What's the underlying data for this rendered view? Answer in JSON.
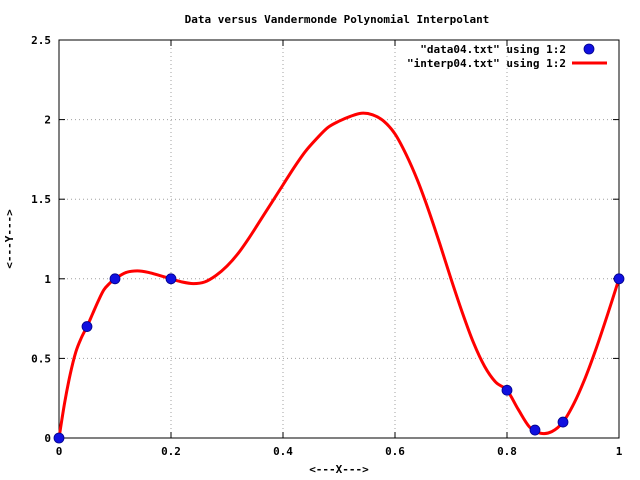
{
  "chart_data": {
    "type": "line",
    "title": "Data versus Vandermonde Polynomial Interpolant",
    "xlabel": "<---X--->",
    "ylabel": "<---Y--->",
    "xlim": [
      0,
      1
    ],
    "ylim": [
      0,
      2.5
    ],
    "x_ticks": [
      "0",
      "0.2",
      "0.4",
      "0.6",
      "0.8",
      "1"
    ],
    "y_ticks": [
      "0",
      "0.5",
      "1",
      "1.5",
      "2",
      "2.5"
    ],
    "grid": true,
    "legend_position": "top-right",
    "series": [
      {
        "name": "\"data04.txt\" using 1:2",
        "style": "points",
        "color": "#1010e0",
        "x": [
          0.0,
          0.05,
          0.1,
          0.2,
          0.8,
          0.85,
          0.9,
          1.0
        ],
        "y": [
          0.0,
          0.7,
          1.0,
          1.0,
          0.3,
          0.05,
          0.1,
          1.0
        ]
      },
      {
        "name": "\"interp04.txt\" using 1:2",
        "style": "line",
        "color": "#ff0000",
        "x": [
          0.0,
          0.01,
          0.02,
          0.03,
          0.04,
          0.05,
          0.06,
          0.07,
          0.08,
          0.09,
          0.1,
          0.12,
          0.14,
          0.16,
          0.18,
          0.2,
          0.22,
          0.24,
          0.26,
          0.28,
          0.3,
          0.32,
          0.34,
          0.36,
          0.38,
          0.4,
          0.42,
          0.44,
          0.46,
          0.48,
          0.5,
          0.52,
          0.54,
          0.56,
          0.58,
          0.6,
          0.62,
          0.64,
          0.66,
          0.68,
          0.7,
          0.72,
          0.74,
          0.76,
          0.78,
          0.8,
          0.82,
          0.84,
          0.86,
          0.88,
          0.9,
          0.92,
          0.94,
          0.96,
          0.98,
          1.0
        ],
        "y": [
          0.0,
          0.22,
          0.4,
          0.54,
          0.63,
          0.7,
          0.78,
          0.86,
          0.93,
          0.97,
          1.0,
          1.04,
          1.05,
          1.04,
          1.02,
          1.0,
          0.98,
          0.97,
          0.98,
          1.02,
          1.08,
          1.16,
          1.26,
          1.37,
          1.48,
          1.59,
          1.7,
          1.8,
          1.88,
          1.95,
          1.99,
          2.02,
          2.04,
          2.03,
          1.99,
          1.91,
          1.78,
          1.62,
          1.43,
          1.22,
          1.0,
          0.79,
          0.6,
          0.45,
          0.35,
          0.3,
          0.18,
          0.07,
          0.03,
          0.04,
          0.1,
          0.22,
          0.38,
          0.57,
          0.78,
          1.0
        ]
      }
    ]
  }
}
